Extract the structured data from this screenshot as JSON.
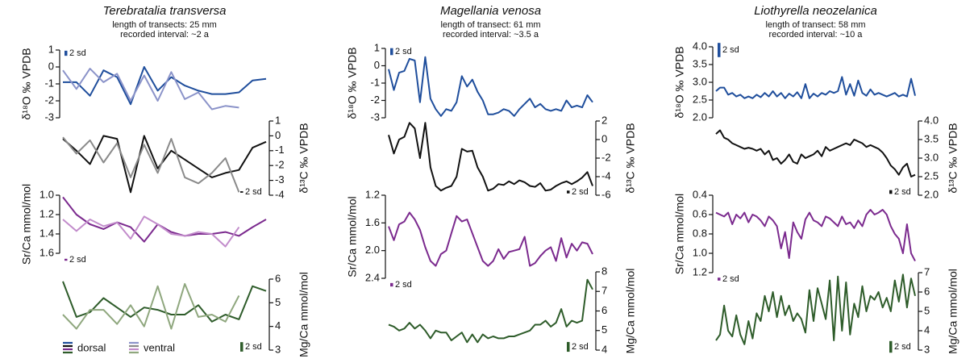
{
  "chart_data": [
    {
      "type": "line",
      "title": "Terebratalia transversa",
      "subtitle": [
        "length of transects: 25 mm",
        "recorded interval: ~2 a"
      ],
      "ylabel": "δ¹⁸O ‰ VPDB",
      "ylim": [
        -3,
        1
      ],
      "yticks": [
        -3,
        -2,
        -1,
        0,
        1
      ],
      "sd_label": "2 sd",
      "sd_bar": 0.3,
      "series": [
        {
          "color": "#1f4e9c",
          "values": [
            -0.9,
            -0.9,
            -1.7,
            -0.2,
            -0.6,
            -2.2,
            0.0,
            -1.4,
            -0.6,
            -1.1,
            -1.4,
            -1.6,
            -1.6,
            -1.5,
            -0.8,
            -0.7
          ]
        },
        {
          "color": "#8b93c9",
          "values": [
            -0.2,
            -1.3,
            -0.1,
            -0.9,
            -0.4,
            -2.0,
            -0.5,
            -2.0,
            -0.3,
            -1.9,
            -1.5,
            -2.5,
            -2.3,
            -2.4,
            null,
            null
          ]
        }
      ]
    },
    {
      "type": "line",
      "ylabel": "δ¹³C ‰ VPDB",
      "ylim": [
        -4,
        1
      ],
      "yticks": [
        -4,
        -3,
        -2,
        -1,
        0,
        1
      ],
      "sd_label": "2 sd",
      "sd_bar": 0.1,
      "series": [
        {
          "color": "#111111",
          "values": [
            -0.2,
            -1.0,
            -1.9,
            0.0,
            -0.2,
            -3.8,
            0.0,
            -2.2,
            -1.0,
            -1.6,
            -2.2,
            -2.8,
            -2.5,
            -2.3,
            -0.8,
            -0.4
          ]
        },
        {
          "color": "#8a8a8a",
          "values": [
            -0.1,
            -1.2,
            -0.3,
            -1.8,
            -0.5,
            -2.8,
            -0.6,
            -2.5,
            -0.2,
            -2.8,
            -3.2,
            -2.5,
            -1.5,
            -3.8,
            null,
            null
          ]
        }
      ]
    },
    {
      "type": "line",
      "ylabel": "Sr/Ca mmol/mol",
      "y_inverted": true,
      "ylim": [
        1,
        1.6
      ],
      "yticks": [
        {
          "value": 1,
          "label": "1.0"
        },
        1.2,
        1.4,
        1.6
      ],
      "sd_label": "2 sd",
      "sd_bar": 0.02,
      "series": [
        {
          "color": "#7b2a8e",
          "values": [
            1.02,
            1.2,
            1.3,
            1.35,
            1.28,
            1.33,
            1.48,
            1.3,
            1.38,
            1.42,
            1.4,
            1.4,
            1.38,
            1.42,
            1.33,
            1.25
          ]
        },
        {
          "color": "#c28ccb",
          "values": [
            1.25,
            1.37,
            1.25,
            1.32,
            1.28,
            1.45,
            1.22,
            1.3,
            1.4,
            1.42,
            1.38,
            1.4,
            1.53,
            1.33,
            null,
            null
          ]
        }
      ]
    },
    {
      "type": "line",
      "ylabel": "Mg/Ca mmol/mol",
      "ylim": [
        3,
        6
      ],
      "yticks": [
        3,
        4,
        5,
        6
      ],
      "sd_label": "2 sd",
      "sd_bar": 0.4,
      "series": [
        {
          "name": "dorsal",
          "color": "#2e5c2a",
          "values": [
            5.9,
            4.4,
            4.6,
            5.2,
            4.8,
            4.4,
            4.8,
            4.7,
            4.5,
            4.5,
            4.9,
            4.2,
            4.5,
            4.3,
            5.7,
            5.5
          ]
        },
        {
          "name": "ventral",
          "color": "#8fa77e",
          "values": [
            4.5,
            3.9,
            4.7,
            4.7,
            4.1,
            4.9,
            4.0,
            5.7,
            3.9,
            5.8,
            4.4,
            4.5,
            4.2,
            5.3,
            null,
            null
          ]
        }
      ]
    },
    {
      "type": "line",
      "title": "Magellania venosa",
      "subtitle": [
        "length of transect: 61 mm",
        "recorded interval: ~3.5 a"
      ],
      "ylabel": "δ¹⁸O ‰ VPDB",
      "ylim": [
        -3,
        1
      ],
      "yticks": [
        -3,
        -2,
        -1,
        0,
        1
      ],
      "sd_label": "2 sd",
      "sd_bar": 0.4,
      "series": [
        {
          "color": "#1f4e9c",
          "values": [
            -0.2,
            -1.4,
            -0.4,
            -0.3,
            0.4,
            0.3,
            -2.1,
            0.5,
            -1.9,
            -2.5,
            -2.9,
            -2.5,
            -2.6,
            -2.1,
            -0.6,
            -1.2,
            -0.8,
            -1.5,
            -2.0,
            -2.8,
            -2.8,
            -2.7,
            -2.5,
            -2.6,
            -2.9,
            -2.5,
            -2.2,
            -1.9,
            -2.4,
            -2.2,
            -2.5,
            -2.6,
            -2.5,
            -2.6,
            -2.0,
            -2.4,
            -2.3,
            -2.4,
            -1.7,
            -2.1
          ]
        }
      ]
    },
    {
      "type": "line",
      "ylabel": "δ¹³C ‰ VPDB",
      "ylim": [
        -6,
        2
      ],
      "yticks": [
        -6,
        -4,
        -2,
        0,
        2
      ],
      "sd_label": "2 sd",
      "sd_bar": 0.3,
      "series": [
        {
          "color": "#111111",
          "values": [
            0.5,
            -1.5,
            0,
            0.3,
            1.8,
            1.2,
            -2.0,
            1.8,
            -3.0,
            -5.0,
            -5.5,
            -5.2,
            -5.0,
            -4.0,
            -1.0,
            -1.3,
            -1.2,
            -3.0,
            -4.0,
            -5.5,
            -5.3,
            -4.8,
            -4.9,
            -4.5,
            -4.8,
            -4.4,
            -4.6,
            -5.0,
            -5.1,
            -4.7,
            -5.5,
            -5.4,
            -5.0,
            -4.7,
            -4.5,
            -4.8,
            -4.5,
            -4.1,
            -3.5,
            -5.0
          ]
        }
      ]
    },
    {
      "type": "line",
      "ylabel": "Sr/Ca mmol/mol",
      "y_inverted": true,
      "ylim": [
        1.2,
        2.4
      ],
      "yticks": [
        1.2,
        1.6,
        {
          "value": 2,
          "label": "2.0"
        },
        2.4
      ],
      "sd_label": "2 sd",
      "sd_bar": 0.05,
      "series": [
        {
          "color": "#7b2a8e",
          "values": [
            1.65,
            1.85,
            1.62,
            1.58,
            1.45,
            1.55,
            1.7,
            1.95,
            2.15,
            2.22,
            2.05,
            2.0,
            1.75,
            1.5,
            1.58,
            1.55,
            1.75,
            1.95,
            2.15,
            2.22,
            2.15,
            1.98,
            2.12,
            2.02,
            2.0,
            1.98,
            1.8,
            2.22,
            2.18,
            2.08,
            2.0,
            1.95,
            2.15,
            1.82,
            2.1,
            1.9,
            2.0,
            1.88,
            1.9,
            2.05
          ]
        }
      ]
    },
    {
      "type": "line",
      "ylabel": "Mg/Ca mmol/mol",
      "ylim": [
        4,
        8
      ],
      "yticks": [
        4,
        5,
        6,
        7,
        8
      ],
      "sd_label": "2 sd",
      "sd_bar": 0.5,
      "series": [
        {
          "color": "#2e5c2a",
          "values": [
            5.3,
            5.2,
            5.0,
            5.1,
            5.4,
            5.1,
            5.3,
            5.0,
            4.6,
            5.0,
            4.9,
            4.9,
            4.5,
            4.7,
            4.9,
            4.4,
            4.8,
            4.4,
            4.8,
            4.6,
            4.7,
            4.6,
            4.6,
            4.7,
            4.7,
            4.8,
            4.9,
            5.0,
            5.3,
            5.3,
            5.5,
            5.2,
            5.4,
            6.1,
            5.2,
            5.5,
            5.4,
            5.5,
            7.6,
            7.1
          ]
        }
      ]
    },
    {
      "type": "line",
      "title": "Liothyrella neozelanica",
      "subtitle": [
        "length of transect: 58 mm",
        "recorded interval: ~10 a"
      ],
      "ylabel": "δ¹⁸O ‰ VPDB",
      "ylim": [
        2,
        4
      ],
      "yticks": [
        {
          "value": 2,
          "label": "2.0"
        },
        2.5,
        {
          "value": 3,
          "label": "3.0"
        },
        3.5,
        {
          "value": 4,
          "label": "4.0"
        }
      ],
      "sd_label": "2 sd",
      "sd_bar": 0.4,
      "series": [
        {
          "color": "#1f4e9c",
          "values": [
            2.75,
            2.85,
            2.85,
            2.65,
            2.7,
            2.6,
            2.65,
            2.55,
            2.6,
            2.55,
            2.65,
            2.58,
            2.7,
            2.6,
            2.75,
            2.6,
            2.7,
            2.55,
            2.68,
            2.6,
            2.72,
            2.55,
            2.95,
            2.55,
            2.68,
            2.6,
            2.7,
            2.65,
            2.75,
            2.7,
            2.75,
            3.15,
            2.65,
            2.95,
            2.62,
            3.05,
            2.7,
            2.62,
            2.8,
            2.65,
            2.7,
            2.65,
            2.6,
            2.65,
            2.7,
            2.6,
            2.65,
            2.6,
            3.1,
            2.62
          ]
        }
      ]
    },
    {
      "type": "line",
      "ylabel": "δ¹³C ‰ VPDB",
      "ylim": [
        2,
        4
      ],
      "yticks": [
        {
          "value": 2,
          "label": "2.0"
        },
        2.5,
        {
          "value": 3,
          "label": "3.0"
        },
        3.5,
        {
          "value": 4,
          "label": "4.0"
        }
      ],
      "sd_label": "2 sd",
      "sd_bar": 0.1,
      "series": [
        {
          "color": "#111111",
          "values": [
            3.65,
            3.75,
            3.55,
            3.5,
            3.4,
            3.35,
            3.3,
            3.25,
            3.28,
            3.25,
            3.2,
            3.25,
            3.1,
            3.2,
            2.95,
            3.0,
            2.85,
            2.95,
            3.1,
            2.9,
            2.85,
            3.1,
            3.0,
            3.05,
            3.1,
            3.2,
            3.05,
            3.3,
            3.2,
            3.25,
            3.3,
            3.35,
            3.4,
            3.35,
            3.5,
            3.45,
            3.4,
            3.3,
            3.35,
            3.3,
            3.25,
            3.15,
            3.0,
            2.8,
            2.7,
            2.55,
            2.75,
            2.85,
            2.5,
            2.55
          ]
        }
      ]
    },
    {
      "type": "line",
      "ylabel": "Sr/Ca mmol/mol",
      "y_inverted": true,
      "ylim": [
        0.4,
        1.2
      ],
      "yticks": [
        0.4,
        0.6,
        0.8,
        {
          "value": 1,
          "label": "1.0"
        },
        1.2
      ],
      "sd_label": "2 sd",
      "sd_bar": 0.03,
      "series": [
        {
          "color": "#7b2a8e",
          "values": [
            0.58,
            0.6,
            0.62,
            0.58,
            0.7,
            0.6,
            0.64,
            0.58,
            0.68,
            0.6,
            0.62,
            0.66,
            0.72,
            0.62,
            0.66,
            0.72,
            0.95,
            0.78,
            1.05,
            0.68,
            0.78,
            0.85,
            0.65,
            0.58,
            0.66,
            0.68,
            0.72,
            0.62,
            0.64,
            0.68,
            0.72,
            0.62,
            0.7,
            0.68,
            0.74,
            0.66,
            0.72,
            0.6,
            0.55,
            0.6,
            0.58,
            0.55,
            0.6,
            0.72,
            0.8,
            0.85,
            1.0,
            0.7,
            1.0,
            1.08
          ]
        }
      ]
    },
    {
      "type": "line",
      "ylabel": "Mg/Ca mmol/mol",
      "ylim": [
        3,
        7
      ],
      "yticks": [
        3,
        4,
        5,
        6,
        7
      ],
      "sd_label": "2 sd",
      "sd_bar": 0.6,
      "series": [
        {
          "color": "#2e5c2a",
          "values": [
            3.5,
            3.8,
            5.3,
            4.0,
            3.7,
            4.8,
            3.8,
            3.3,
            4.5,
            3.6,
            4.9,
            4.5,
            5.8,
            5.0,
            6.0,
            4.7,
            5.8,
            4.8,
            5.3,
            4.5,
            4.9,
            4.6,
            3.9,
            6.1,
            4.5,
            6.2,
            5.4,
            4.6,
            6.6,
            3.5,
            6.8,
            4.0,
            6.5,
            3.8,
            5.4,
            4.7,
            6.3,
            5.0,
            5.8,
            5.6,
            6.0,
            5.2,
            5.7,
            5.0,
            6.6,
            5.5,
            6.9,
            5.2,
            6.7,
            5.8
          ]
        }
      ]
    }
  ]
}
